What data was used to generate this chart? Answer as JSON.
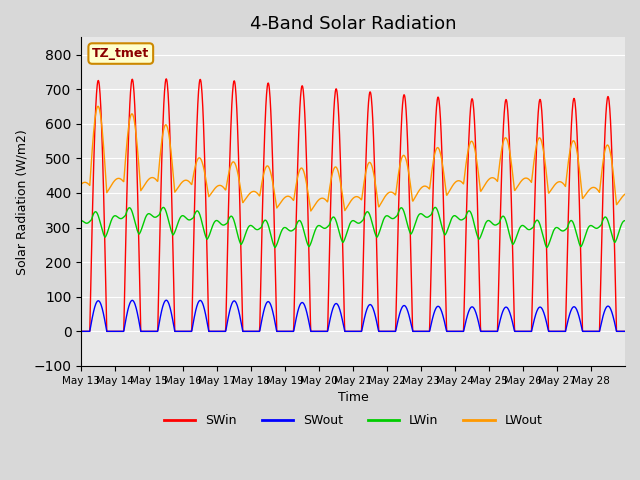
{
  "title": "4-Band Solar Radiation",
  "xlabel": "Time",
  "ylabel": "Solar Radiation (W/m2)",
  "ylim": [
    -100,
    850
  ],
  "yticks": [
    -100,
    0,
    100,
    200,
    300,
    400,
    500,
    600,
    700,
    800
  ],
  "legend_labels": [
    "SWin",
    "SWout",
    "LWin",
    "LWout"
  ],
  "legend_colors": [
    "#ff0000",
    "#0000ff",
    "#00cc00",
    "#ff9900"
  ],
  "annotation_text": "TZ_tmet",
  "annotation_bbox_facecolor": "#ffffcc",
  "annotation_bbox_edgecolor": "#cc8800",
  "x_tick_labels": [
    "May 13",
    "May 14",
    "May 15",
    "May 16",
    "May 17",
    "May 18",
    "May 19",
    "May 20",
    "May 21",
    "May 22",
    "May 23",
    "May 24",
    "May 25",
    "May 26",
    "May 27",
    "May 28"
  ],
  "n_days": 16,
  "fig_facecolor": "#d8d8d8",
  "plot_bg_color": "#e8e8e8",
  "grid_color": "#ffffff",
  "title_fontsize": 13
}
